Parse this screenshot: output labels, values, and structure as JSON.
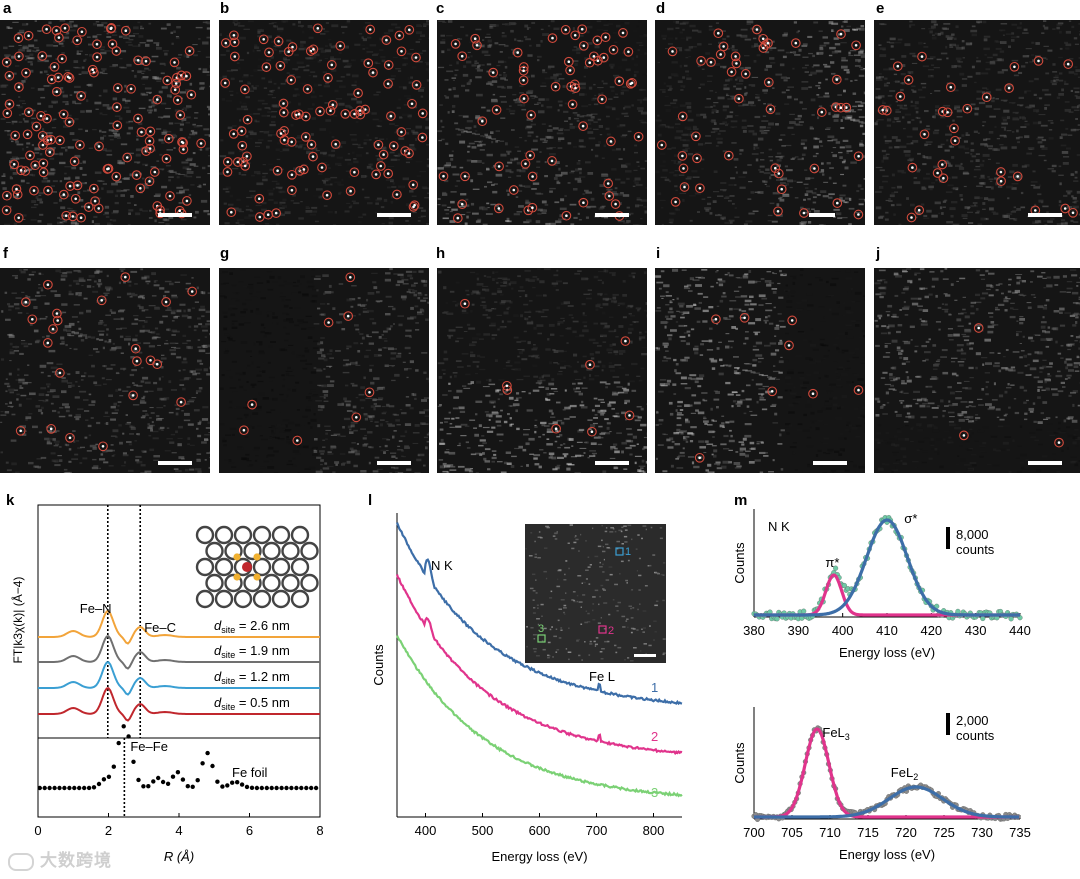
{
  "panels": {
    "a": "a",
    "b": "b",
    "c": "c",
    "d": "d",
    "e": "e",
    "f": "f",
    "g": "g",
    "h": "h",
    "i": "i",
    "j": "j",
    "k": "k",
    "l": "l",
    "m": "m"
  },
  "colors": {
    "circle": "#d24a3c",
    "red": "#c0272d",
    "gray": "#707070",
    "blue": "#3a9fd3",
    "orange": "#f2a43a",
    "steel": "#3d6ea8",
    "magenta": "#e0348c",
    "green": "#7bd175",
    "teal": "#6ec9a5"
  },
  "watermark": "大数跨境",
  "chart_data": [
    {
      "panel": "k",
      "type": "line",
      "xlabel": "R (Å)",
      "ylabel": "FT|k3χ(k)| (Å−4)",
      "xlim": [
        0,
        8
      ],
      "xticks": [
        "0",
        "2",
        "4",
        "6",
        "8"
      ],
      "markers": {
        "fe_n": "Fe–N",
        "fe_c": "Fe–C",
        "fe_fe": "Fe–Fe",
        "foil": "Fe foil"
      },
      "series": [
        {
          "name": "dsite = 2.6 nm",
          "label": "= 2.6 nm",
          "color": "#f2a43a",
          "peak_R": 1.98,
          "shoulder_R": 2.9
        },
        {
          "name": "dsite = 1.9 nm",
          "label": "= 1.9 nm",
          "color": "#707070",
          "peak_R": 1.98,
          "shoulder_R": 2.9
        },
        {
          "name": "dsite = 1.2 nm",
          "label": "= 1.2 nm",
          "color": "#3a9fd3",
          "peak_R": 1.98,
          "shoulder_R": 2.9
        },
        {
          "name": "dsite = 0.5 nm",
          "label": "= 0.5 nm",
          "color": "#c0272d",
          "peak_R": 1.98,
          "shoulder_R": 2.9
        }
      ],
      "foil_peaks_R": [
        2.45,
        3.95,
        4.8
      ],
      "dashed_lines_R": [
        1.98,
        2.9,
        2.45
      ]
    },
    {
      "panel": "l",
      "type": "line",
      "xlabel": "Energy loss (eV)",
      "ylabel": "Counts",
      "xlim": [
        350,
        850
      ],
      "xticks": [
        "400",
        "500",
        "600",
        "700",
        "800"
      ],
      "annotations": {
        "nk": "N K",
        "fel": "Fe L"
      },
      "series": [
        {
          "name": "1",
          "color": "#3d6ea8"
        },
        {
          "name": "2",
          "color": "#e0348c"
        },
        {
          "name": "3",
          "color": "#7bd175"
        }
      ]
    },
    {
      "panel": "m-top",
      "type": "scatter",
      "xlabel": "Energy loss (eV)",
      "ylabel": "Counts",
      "xlim": [
        380,
        440
      ],
      "xticks": [
        "380",
        "390",
        "400",
        "410",
        "420",
        "430",
        "440"
      ],
      "title": "N K",
      "scale_label": "8,000",
      "scale_unit": "counts",
      "peaks": [
        {
          "name": "π*",
          "center": 398,
          "color": "#e0348c"
        },
        {
          "name": "σ*",
          "center": 410,
          "color": "#3d6ea8"
        }
      ]
    },
    {
      "panel": "m-bottom",
      "type": "scatter",
      "xlabel": "Energy loss (eV)",
      "ylabel": "Counts",
      "xlim": [
        700,
        735
      ],
      "xticks": [
        "700",
        "705",
        "710",
        "715",
        "720",
        "725",
        "730",
        "735"
      ],
      "scale_label": "2,000",
      "scale_unit": "counts",
      "peaks": [
        {
          "name": "FeL3",
          "center": 708.3,
          "color": "#e0348c"
        },
        {
          "name": "FeL2",
          "center": 721.3,
          "color": "#3d6ea8"
        }
      ]
    }
  ]
}
